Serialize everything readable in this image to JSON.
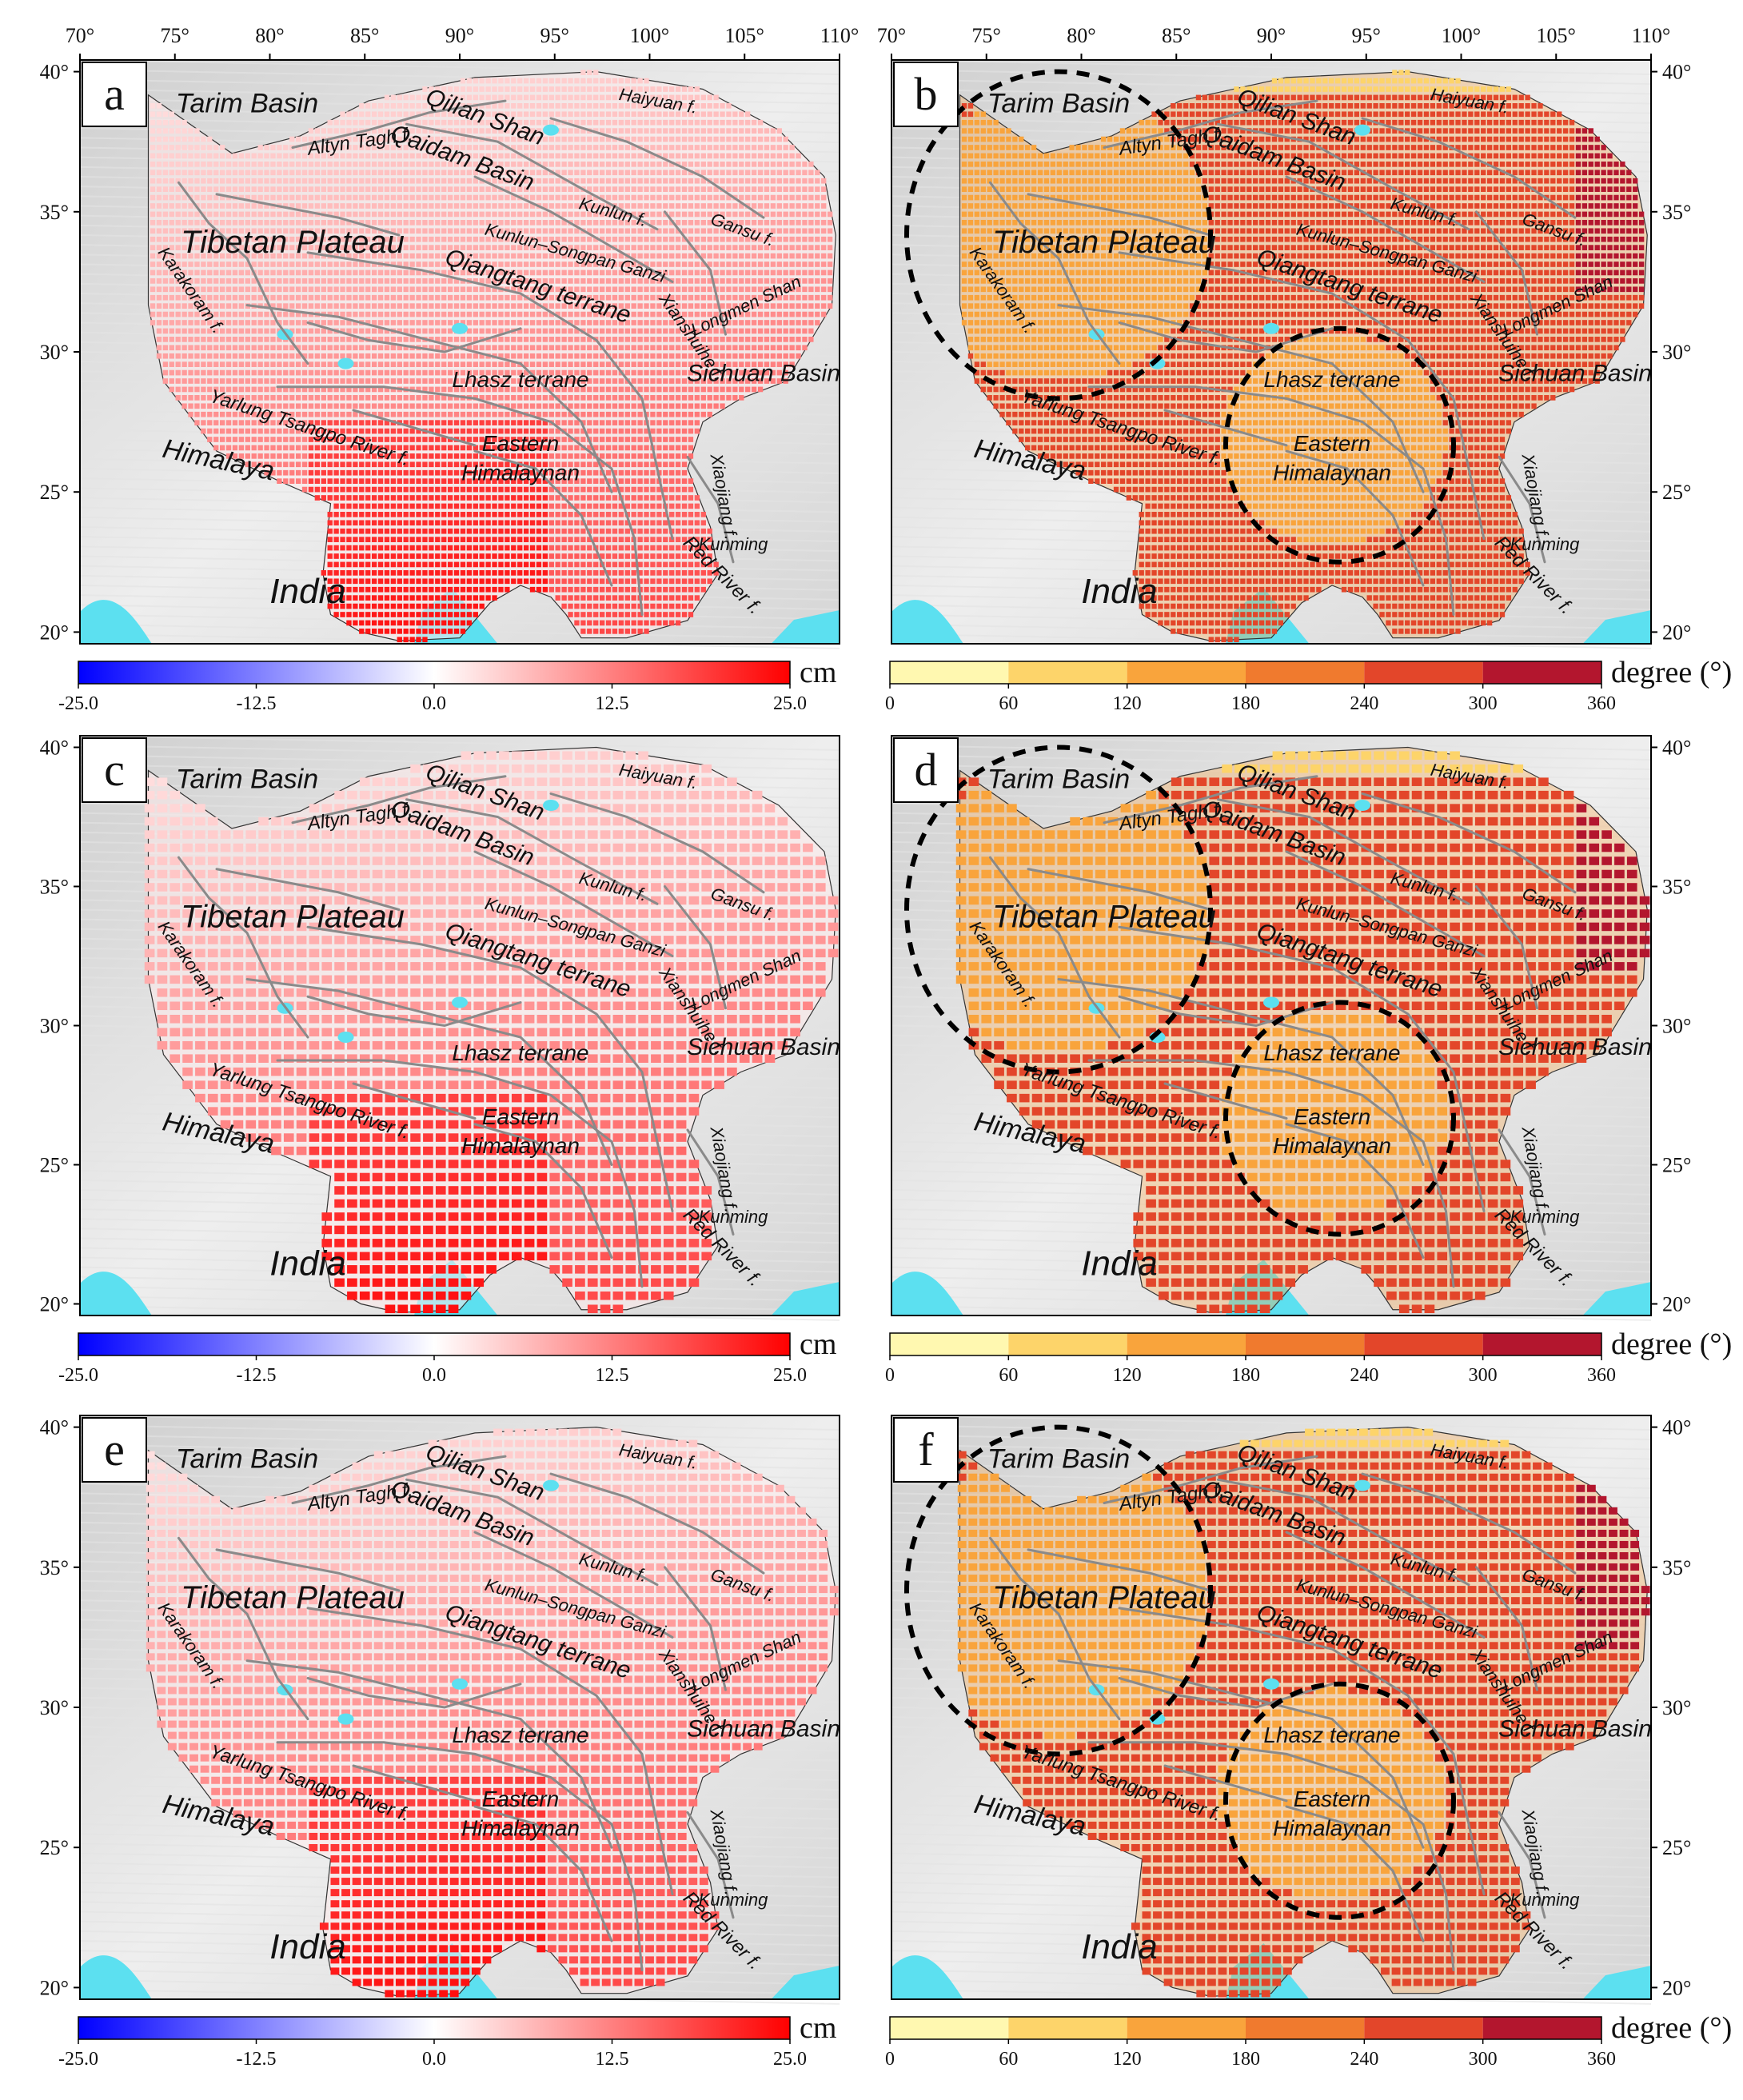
{
  "panels": [
    {
      "id": "a",
      "type": "displacement"
    },
    {
      "id": "b",
      "type": "phase"
    },
    {
      "id": "c",
      "type": "displacement"
    },
    {
      "id": "d",
      "type": "phase"
    },
    {
      "id": "e",
      "type": "displacement"
    },
    {
      "id": "f",
      "type": "phase"
    }
  ],
  "lon_ticks": [
    "70°",
    "75°",
    "80°",
    "85°",
    "90°",
    "95°",
    "100°",
    "105°",
    "110°"
  ],
  "lat_ticks": [
    "40°",
    "35°",
    "30°",
    "25°",
    "20°"
  ],
  "colorbars": {
    "displacement": {
      "unit": "cm",
      "ticks": [
        "-25.0",
        "-12.5",
        "0.0",
        "12.5",
        "25.0"
      ],
      "colors": {
        "low": "#0000ff",
        "mid": "#ffffff",
        "high": "#ff0000"
      }
    },
    "phase": {
      "unit": "degree (°)",
      "ticks": [
        "0",
        "60",
        "120",
        "180",
        "240",
        "300",
        "360"
      ],
      "colors": [
        "#fff8b0",
        "#fdd46a",
        "#f9a43c",
        "#f07a2e",
        "#e3462a",
        "#b3162e"
      ]
    }
  },
  "map_labels": {
    "tarim": "Tarim Basin",
    "altyn": "Altyn Tagh f.",
    "qilian": "Qilian Shan",
    "haiyuan": "Haiyuan f.",
    "qaidam": "Qaidam Basin",
    "kunlun": "Kunlun f.",
    "gansu": "Gansu f.",
    "tibetan": "Tibetan Plateau",
    "songpan": "Kunlun–Songpan Ganzi",
    "karakoram": "Karakoram f.",
    "qiangtang": "Qiangtang terrane",
    "longmen": "Longmen Shan",
    "xianshuihe": "Xianshuihe f.",
    "sichuan": "Sichuan Basin",
    "lhasa": "Lhasz terrane",
    "yarlung": "Yarlung Tsangpo River f.",
    "eastern": "Eastern",
    "himalaynan": "Himalaynan",
    "himalaya": "Himalaya",
    "xiaojiang": "Xiaojiang f.",
    "kunming": "Kunming",
    "redriver": "Red River f.",
    "india": "India"
  }
}
